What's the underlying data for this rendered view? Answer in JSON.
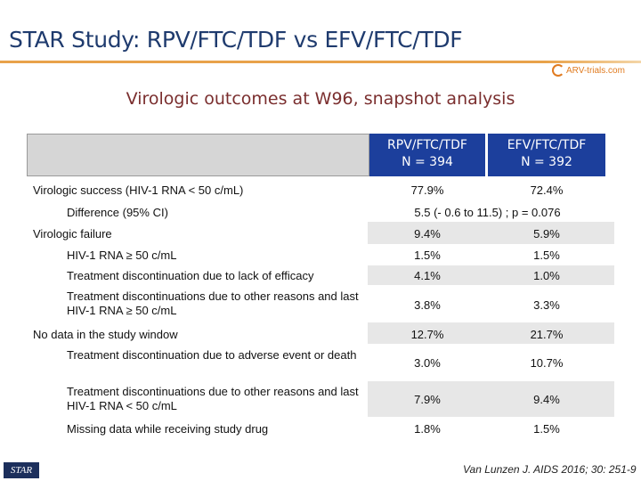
{
  "title": "STAR Study: RPV/FTC/TDF vs EFV/FTC/TDF",
  "subtitle": "Virologic outcomes at W96, snapshot analysis",
  "logo_text": "ARV-trials.com",
  "columns": [
    {
      "line1": "RPV/FTC/TDF",
      "line2": "N = 394"
    },
    {
      "line1": "EFV/FTC/TDF",
      "line2": "N = 392"
    }
  ],
  "rows": [
    {
      "label": "Virologic success (HIV-1 RNA < 50 c/mL)",
      "v1": "77.9%",
      "v2": "72.4%"
    },
    {
      "label": "Difference (95% CI)",
      "span": "5.5 (- 0.6 to 11.5) ; p = 0.076"
    },
    {
      "label": "Virologic failure",
      "v1": "9.4%",
      "v2": "5.9%"
    },
    {
      "label": "HIV-1 RNA ≥ 50 c/mL",
      "v1": "1.5%",
      "v2": "1.5%"
    },
    {
      "label": "Treatment discontinuation due to lack of efficacy",
      "v1": "4.1%",
      "v2": "1.0%"
    },
    {
      "label": "Treatment discontinuations due to other reasons and last HIV-1 RNA ≥ 50 c/mL",
      "v1": "3.8%",
      "v2": "3.3%"
    },
    {
      "label": "No data in the study window",
      "v1": "12.7%",
      "v2": "21.7%"
    },
    {
      "label": "Treatment discontinuation due to  adverse event or death",
      "v1": "3.0%",
      "v2": "10.7%"
    },
    {
      "label": "Treatment discontinuations due to other reasons and last HIV-1 RNA < 50 c/mL",
      "v1": "7.9%",
      "v2": "9.4%"
    },
    {
      "label": "Missing data while receiving study drug",
      "v1": "1.8%",
      "v2": "1.5%"
    }
  ],
  "footer_logo": "STAR",
  "citation": "Van Lunzen J. AIDS 2016; 30: 251-9"
}
